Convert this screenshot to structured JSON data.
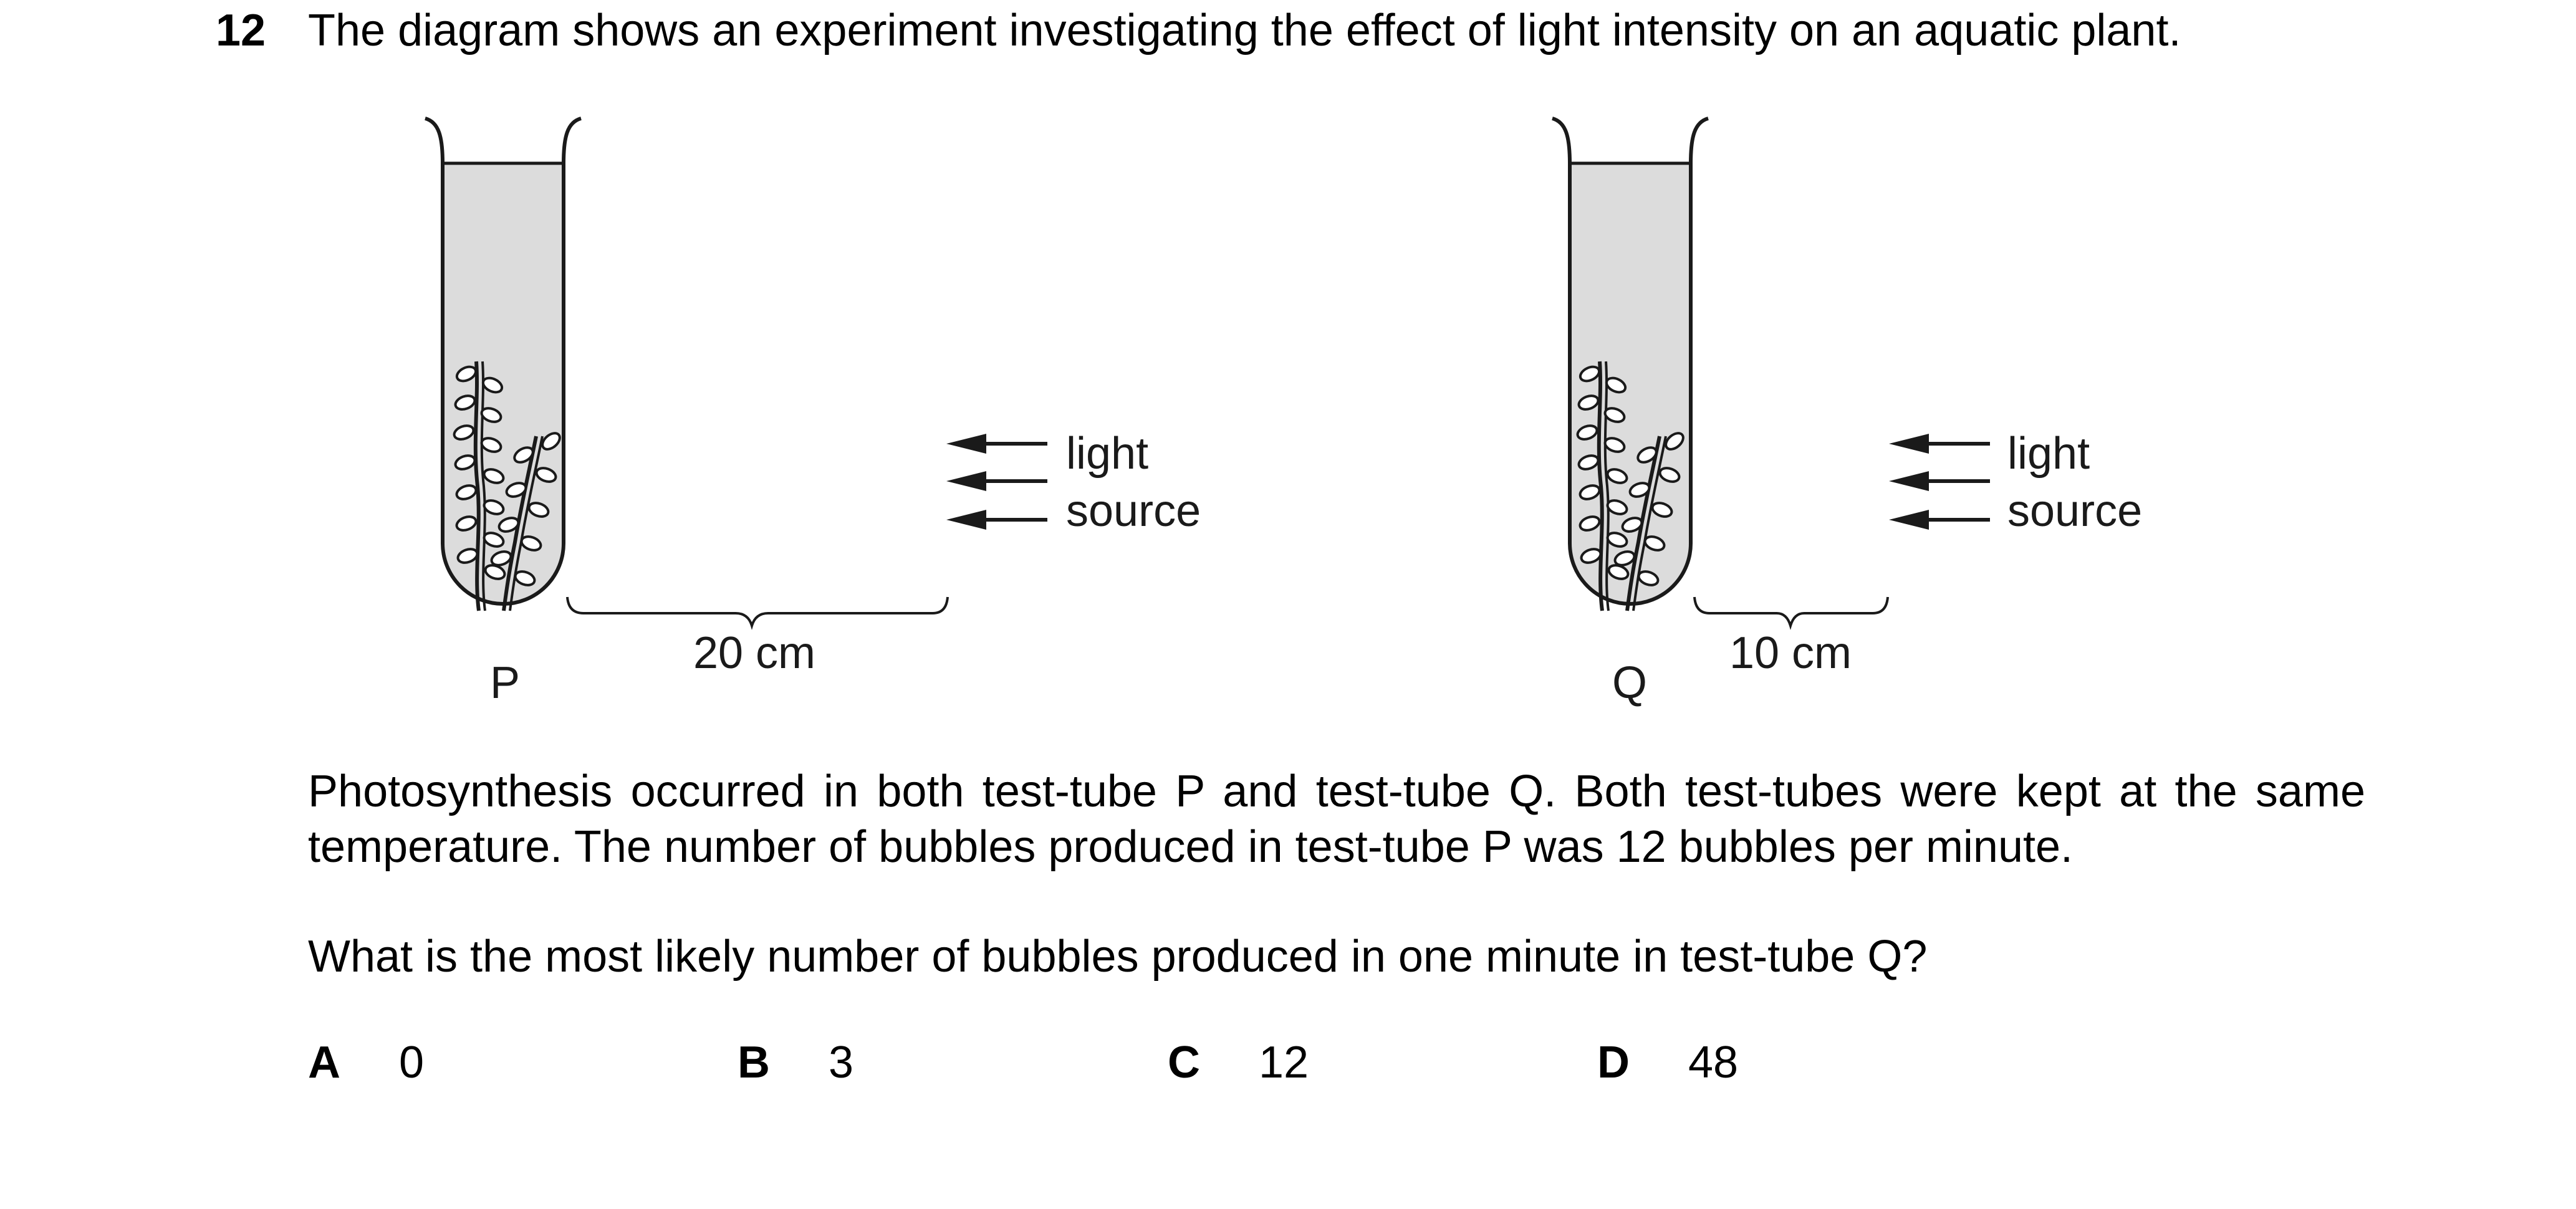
{
  "question": {
    "number": "12",
    "stem": "The diagram shows an experiment investigating the effect of light intensity on an aquatic plant.",
    "paragraph": "Photosynthesis occurred in both test-tube P and test-tube Q. Both test-tubes were kept at the same temperature. The number of bubbles produced in test-tube P was 12 bubbles per minute.",
    "prompt": "What is the most likely number of bubbles produced in one minute in test-tube Q?"
  },
  "diagram": {
    "tube_p": {
      "label": "P",
      "distance_label": "20 cm",
      "light_line1": "light",
      "light_line2": "source"
    },
    "tube_q": {
      "label": "Q",
      "distance_label": "10 cm",
      "light_line1": "light",
      "light_line2": "source"
    },
    "colors": {
      "liquid": "#dcdcdc",
      "outline": "#1a1a1a"
    }
  },
  "options": [
    {
      "letter": "A",
      "value": "0"
    },
    {
      "letter": "B",
      "value": "3"
    },
    {
      "letter": "C",
      "value": "12"
    },
    {
      "letter": "D",
      "value": "48"
    }
  ]
}
